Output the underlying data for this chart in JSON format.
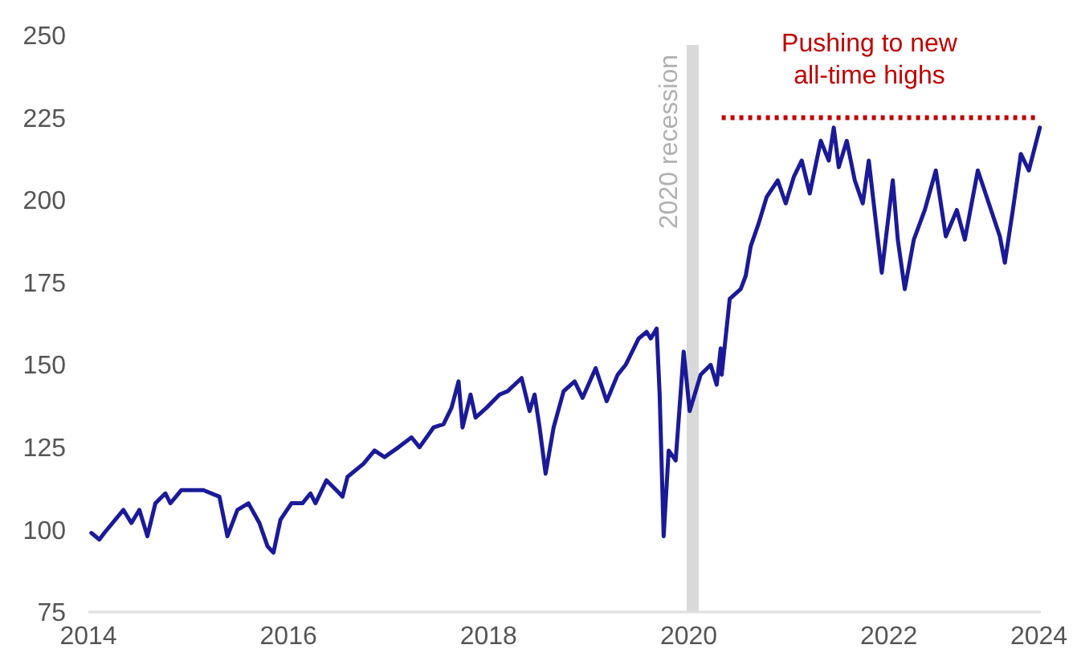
{
  "chart_data": {
    "type": "line",
    "xlim": [
      2014,
      2023.52
    ],
    "xticks": [
      2014,
      2016,
      2018,
      2020,
      2022,
      {
        "value": 2023.5,
        "label": "2024"
      }
    ],
    "ylim": [
      75,
      250
    ],
    "yticks": [
      75,
      100,
      125,
      150,
      175,
      200,
      225,
      250
    ],
    "grid": false,
    "annotations": [
      "Pushing to new\nall-time highs"
    ],
    "bands": [
      {
        "axis": "x",
        "from": 2019.98,
        "to": 2020.1,
        "label": "2020 recession",
        "color": "#d9d9d9"
      }
    ],
    "series": [
      {
        "color": "#1a1a99",
        "line_style": "solid",
        "x": [
          2014.03,
          2014.11,
          2014.16,
          2014.35,
          2014.43,
          2014.51,
          2014.59,
          2014.67,
          2014.77,
          2014.82,
          2014.93,
          2015.0,
          2015.15,
          2015.31,
          2015.39,
          2015.49,
          2015.6,
          2015.71,
          2015.79,
          2015.85,
          2015.92,
          2016.03,
          2016.14,
          2016.22,
          2016.27,
          2016.38,
          2016.51,
          2016.54,
          2016.59,
          2016.75,
          2016.86,
          2016.96,
          2017.1,
          2017.23,
          2017.31,
          2017.45,
          2017.55,
          2017.63,
          2017.7,
          2017.74,
          2017.82,
          2017.87,
          2017.98,
          2018.11,
          2018.19,
          2018.33,
          2018.41,
          2018.46,
          2018.51,
          2018.57,
          2018.65,
          2018.75,
          2018.86,
          2018.94,
          2019.07,
          2019.18,
          2019.29,
          2019.37,
          2019.5,
          2019.58,
          2019.62,
          2019.68,
          2019.71,
          2019.75,
          2019.8,
          2019.87,
          2019.95,
          2020.01,
          2020.12,
          2020.22,
          2020.28,
          2020.32,
          2020.33,
          2020.41,
          2020.52,
          2020.57,
          2020.62,
          2020.7,
          2020.78,
          2020.89,
          2020.97,
          2021.05,
          2021.13,
          2021.21,
          2021.32,
          2021.4,
          2021.45,
          2021.5,
          2021.58,
          2021.66,
          2021.74,
          2021.8,
          2021.88,
          2021.93,
          2022.04,
          2022.09,
          2022.16,
          2022.25,
          2022.36,
          2022.47,
          2022.57,
          2022.68,
          2022.76,
          2022.89,
          2023.0,
          2023.11,
          2023.16,
          2023.24,
          2023.32,
          2023.4,
          2023.51
        ],
        "values": [
          99,
          97,
          99,
          106,
          102,
          106,
          98,
          108,
          111,
          108,
          112,
          112,
          112,
          110,
          98,
          106,
          108,
          102,
          95,
          93,
          103,
          108,
          108,
          111,
          108,
          115,
          111,
          110,
          116,
          120,
          124,
          122,
          125,
          128,
          125,
          131,
          132,
          137,
          145,
          131,
          141,
          134,
          137,
          141,
          142,
          146,
          136,
          141,
          131,
          117,
          131,
          142,
          145,
          140,
          149,
          139,
          147,
          150,
          158,
          160,
          158,
          161,
          141,
          98,
          124,
          121,
          154,
          136,
          147,
          150,
          144,
          155,
          147,
          170,
          173,
          177,
          186,
          193,
          201,
          206,
          199,
          207,
          212,
          202,
          218,
          212,
          222,
          210,
          218,
          206,
          199,
          212,
          191,
          178,
          206,
          188,
          173,
          188,
          197,
          209,
          189,
          197,
          188,
          209,
          199,
          189,
          181,
          197,
          214,
          209,
          222
        ]
      },
      {
        "color": "#c00000",
        "line_style": "dotted",
        "x": [
          2020.33,
          2023.5
        ],
        "values": [
          225,
          225
        ]
      }
    ]
  }
}
